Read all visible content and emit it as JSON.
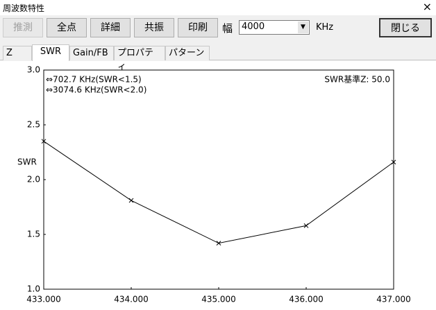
{
  "window": {
    "title": "周波数特性",
    "close": "×"
  },
  "toolbar": {
    "buttons": [
      "推測",
      "全点",
      "詳細",
      "共振",
      "印刷"
    ],
    "width_label": "幅",
    "width_value": "4000",
    "unit": "KHz",
    "close_button": "閉じる"
  },
  "tabs": {
    "items": [
      "Z",
      "SWR",
      "Gain/FB",
      "プロパティ",
      "パターン"
    ],
    "selected": 1
  },
  "chart_data": {
    "type": "line",
    "ylabel": "SWR",
    "annotations": [
      "⇔702.7 KHz(SWR<1.5)",
      "⇔3074.6 KHz(SWR<2.0)"
    ],
    "reference": "SWR基準Z: 50.0",
    "x": [
      433,
      434,
      435,
      436,
      437
    ],
    "values": [
      2.35,
      1.81,
      1.42,
      1.58,
      2.16
    ],
    "color": "#000000",
    "xlim": [
      433,
      437
    ],
    "xticks": [
      {
        "value": 433,
        "label": "433.000"
      },
      {
        "value": 434,
        "label": "434.000"
      },
      {
        "value": 435,
        "label": "435.000"
      },
      {
        "value": 436,
        "label": "436.000"
      },
      {
        "value": 437,
        "label": "437.000"
      }
    ],
    "ylim": [
      1,
      3
    ],
    "yticks": [
      {
        "value": 1,
        "label": "1.0"
      },
      {
        "value": 1.5,
        "label": "1.5"
      },
      {
        "value": 2,
        "label": "2.0"
      },
      {
        "value": 2.5,
        "label": "2.5"
      },
      {
        "value": 3,
        "label": "3.0"
      }
    ]
  }
}
